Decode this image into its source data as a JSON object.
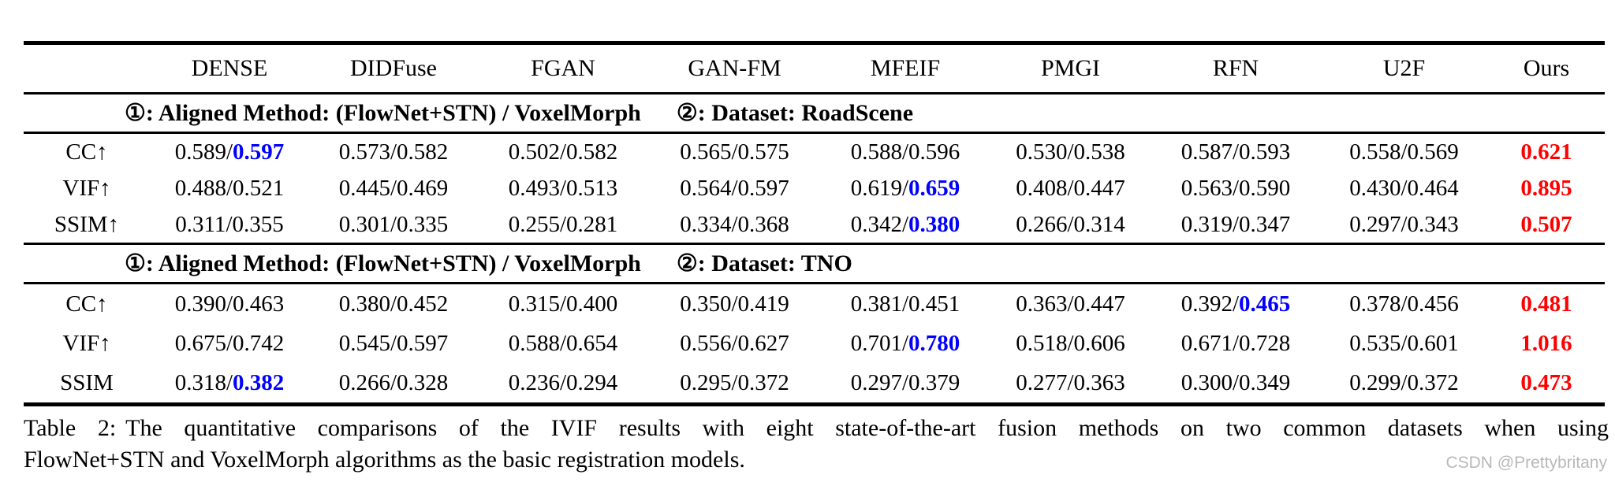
{
  "table": {
    "column_headers": [
      "DENSE",
      "DIDFuse",
      "FGAN",
      "GAN-FM",
      "MFEIF",
      "PMGI",
      "RFN",
      "U2F",
      "Ours"
    ],
    "sections": [
      {
        "header_part1": "①: Aligned Method: (FlowNet+STN) / VoxelMorph",
        "header_part2": "②: Dataset: RoadScene",
        "rows": [
          {
            "label": "CC↑",
            "cells": [
              {
                "a": "0.589",
                "b": "0.597",
                "hl": "blue"
              },
              {
                "a": "0.573",
                "b": "0.582"
              },
              {
                "a": "0.502",
                "b": "0.582"
              },
              {
                "a": "0.565",
                "b": "0.575"
              },
              {
                "a": "0.588",
                "b": "0.596"
              },
              {
                "a": "0.530",
                "b": "0.538"
              },
              {
                "a": "0.587",
                "b": "0.593"
              },
              {
                "a": "0.558",
                "b": "0.569"
              },
              {
                "ours": "0.621"
              }
            ]
          },
          {
            "label": "VIF↑",
            "cells": [
              {
                "a": "0.488",
                "b": "0.521"
              },
              {
                "a": "0.445",
                "b": "0.469"
              },
              {
                "a": "0.493",
                "b": "0.513"
              },
              {
                "a": "0.564",
                "b": "0.597"
              },
              {
                "a": "0.619",
                "b": "0.659",
                "hl": "blue"
              },
              {
                "a": "0.408",
                "b": "0.447"
              },
              {
                "a": "0.563",
                "b": "0.590"
              },
              {
                "a": "0.430",
                "b": "0.464"
              },
              {
                "ours": "0.895"
              }
            ]
          },
          {
            "label": "SSIM↑",
            "cells": [
              {
                "a": "0.311",
                "b": "0.355"
              },
              {
                "a": "0.301",
                "b": "0.335"
              },
              {
                "a": "0.255",
                "b": "0.281"
              },
              {
                "a": "0.334",
                "b": "0.368"
              },
              {
                "a": "0.342",
                "b": "0.380",
                "hl": "blue"
              },
              {
                "a": "0.266",
                "b": "0.314"
              },
              {
                "a": "0.319",
                "b": "0.347"
              },
              {
                "a": "0.297",
                "b": "0.343"
              },
              {
                "ours": "0.507"
              }
            ]
          }
        ]
      },
      {
        "header_part1": "①: Aligned Method: (FlowNet+STN) / VoxelMorph",
        "header_part2": "②: Dataset: TNO",
        "rows": [
          {
            "label": "CC↑",
            "cells": [
              {
                "a": "0.390",
                "b": "0.463"
              },
              {
                "a": "0.380",
                "b": "0.452"
              },
              {
                "a": "0.315",
                "b": "0.400"
              },
              {
                "a": "0.350",
                "b": "0.419"
              },
              {
                "a": "0.381",
                "b": "0.451"
              },
              {
                "a": "0.363",
                "b": "0.447"
              },
              {
                "a": "0.392",
                "b": "0.465",
                "hl": "blue"
              },
              {
                "a": "0.378",
                "b": "0.456"
              },
              {
                "ours": "0.481"
              }
            ]
          },
          {
            "label": "VIF↑",
            "cells": [
              {
                "a": "0.675",
                "b": "0.742"
              },
              {
                "a": "0.545",
                "b": "0.597"
              },
              {
                "a": "0.588",
                "b": "0.654"
              },
              {
                "a": "0.556",
                "b": "0.627"
              },
              {
                "a": "0.701",
                "b": "0.780",
                "hl": "blue"
              },
              {
                "a": "0.518",
                "b": "0.606"
              },
              {
                "a": "0.671",
                "b": "0.728"
              },
              {
                "a": "0.535",
                "b": "0.601"
              },
              {
                "ours": "1.016"
              }
            ]
          },
          {
            "label": "SSIM",
            "cells": [
              {
                "a": "0.318",
                "b": "0.382",
                "hl": "blue"
              },
              {
                "a": "0.266",
                "b": "0.328"
              },
              {
                "a": "0.236",
                "b": "0.294"
              },
              {
                "a": "0.295",
                "b": "0.372"
              },
              {
                "a": "0.297",
                "b": "0.379"
              },
              {
                "a": "0.277",
                "b": "0.363"
              },
              {
                "a": "0.300",
                "b": "0.349"
              },
              {
                "a": "0.299",
                "b": "0.372"
              },
              {
                "ours": "0.473"
              }
            ]
          }
        ]
      }
    ]
  },
  "caption": {
    "prefix": "Table 2:",
    "line1": "The quantitative comparisons of the IVIF results with eight state-of-the-art fusion methods on two common datasets when using",
    "line2": "FlowNet+STN and VoxelMorph algorithms as the basic registration models."
  },
  "watermark": "CSDN @Prettybritany",
  "colors": {
    "best": "#ff0000",
    "second_best": "#0000ff",
    "text": "#000000",
    "watermark": "#b9b9b9"
  }
}
